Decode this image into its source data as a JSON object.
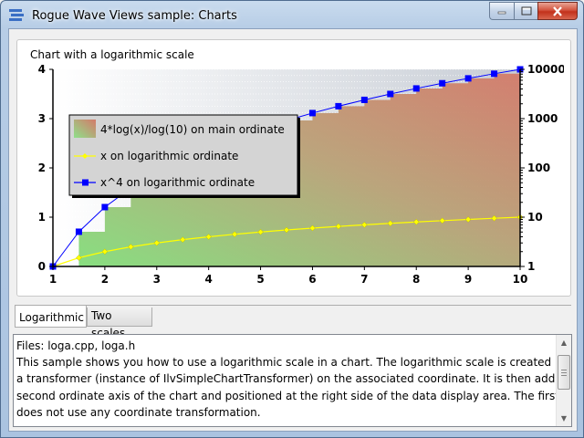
{
  "window": {
    "title": "Rogue Wave Views sample: Charts",
    "icon": "stacked-bars-icon",
    "buttons": [
      "minimize-icon",
      "maximize-icon",
      "close-icon"
    ]
  },
  "chart_box": {
    "label": "Chart with a logarithmic scale"
  },
  "chart_data": {
    "type": "line",
    "title": "",
    "xlabel": "",
    "ylabel": "",
    "x": [
      1,
      1.5,
      2,
      2.5,
      3,
      3.5,
      4,
      4.5,
      5,
      5.5,
      6,
      6.5,
      7,
      7.5,
      8,
      8.5,
      9,
      9.5,
      10
    ],
    "xlim": [
      1,
      10
    ],
    "x_ticks": [
      "1",
      "2",
      "3",
      "4",
      "5",
      "6",
      "7",
      "8",
      "9",
      "10"
    ],
    "left_axis": {
      "ylim": [
        0,
        4
      ],
      "ticks": [
        "0",
        "1",
        "2",
        "3",
        "4"
      ],
      "scale": "linear"
    },
    "right_axis": {
      "ylim": [
        1,
        10000
      ],
      "ticks": [
        "1",
        "10",
        "100",
        "1000",
        "10000"
      ],
      "scale": "log"
    },
    "series": [
      {
        "name": "4*log(x)/log(10) on main ordinate",
        "type": "area",
        "axis": "left",
        "style": "step",
        "gradient": [
          "#7fe07a",
          "#d47a6a"
        ],
        "values": [
          0,
          0.704,
          1.204,
          1.592,
          1.908,
          2.176,
          2.408,
          2.613,
          2.796,
          2.962,
          3.113,
          3.252,
          3.38,
          3.5,
          3.612,
          3.718,
          3.817,
          3.911,
          4
        ]
      },
      {
        "name": "x on logarithmic ordinate",
        "type": "line",
        "axis": "right",
        "color": "#ffff00",
        "marker": "diamond",
        "values": [
          1,
          1.5,
          2,
          2.5,
          3,
          3.5,
          4,
          4.5,
          5,
          5.5,
          6,
          6.5,
          7,
          7.5,
          8,
          8.5,
          9,
          9.5,
          10
        ]
      },
      {
        "name": "x^4 on logarithmic ordinate",
        "type": "line",
        "axis": "right",
        "color": "#0000ff",
        "marker": "square",
        "values": [
          1,
          5.0625,
          16,
          39.0625,
          81,
          150.0625,
          256,
          410.0625,
          625,
          915.0625,
          1296,
          1785.0625,
          2401,
          3164.0625,
          4096,
          5220.0625,
          6561,
          8145.0625,
          10000
        ]
      }
    ],
    "legend": {
      "position": "top-left"
    },
    "grid": {
      "horizontal": true,
      "vertical": false
    }
  },
  "tabs": [
    {
      "label": "Logarithmic",
      "active": true
    },
    {
      "label": "Two scales",
      "active": false
    }
  ],
  "description": {
    "lines": [
      "Files: loga.cpp, loga.h",
      "This sample shows you how to use a logarithmic scale in a chart. The logarithmic scale is created by s",
      "a transformer (instance of IlvSimpleChartTransformer) on the associated coordinate. It is then added a",
      "second ordinate axis of the chart and positioned at the right side of the data display area. The first ord",
      "does not use any coordinate transformation."
    ]
  }
}
